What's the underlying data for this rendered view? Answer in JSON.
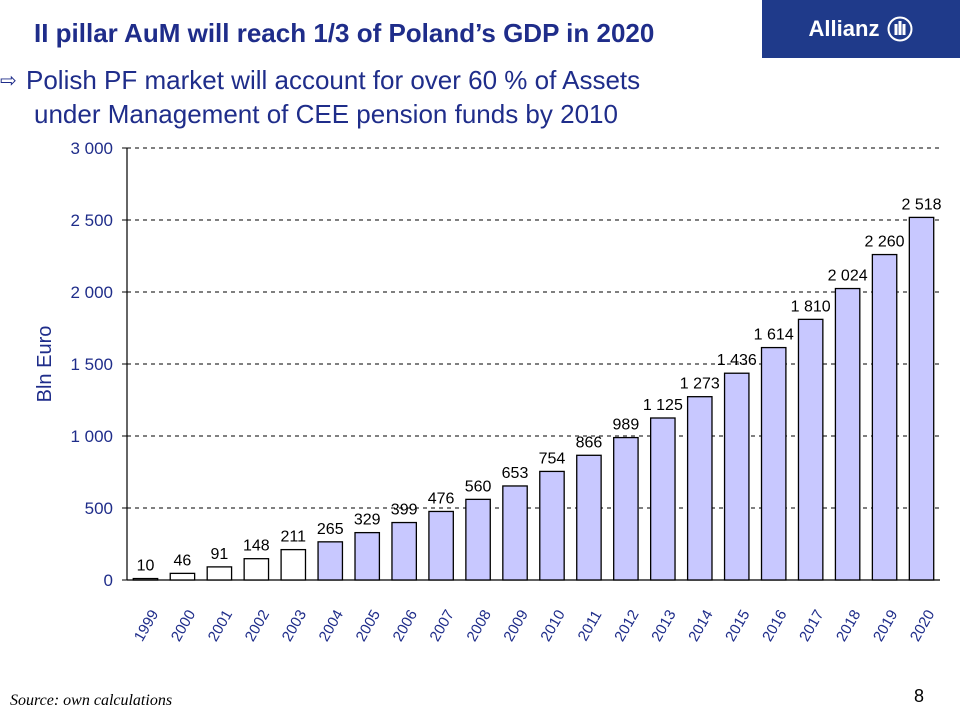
{
  "logo": {
    "text": "Allianz"
  },
  "title": "II pillar AuM will reach 1/3 of Poland’s GDP in 2020",
  "bullet": {
    "line1": "Polish PF market will account  for over 60 % of Assets",
    "line2": "under Management of CEE pension funds by 2010"
  },
  "colors": {
    "title": "#1f2d8a",
    "bar_fill_projected": "#c8c8ff",
    "bar_fill_actual": "#ffffff",
    "axis_text": "#1f2d8a"
  },
  "chart_data": {
    "type": "bar",
    "ylabel": "Bln Euro",
    "ylim": [
      0,
      3000
    ],
    "yticks": [
      0,
      500,
      1000,
      1500,
      2000,
      2500,
      3000
    ],
    "ytick_labels": [
      "0",
      "500",
      "1 000",
      "1 500",
      "2 000",
      "2 500",
      "3 000"
    ],
    "grid": "horizontal dashed",
    "categories": [
      "1999",
      "2000",
      "2001",
      "2002",
      "2003",
      "2004",
      "2005",
      "2006",
      "2007",
      "2008",
      "2009",
      "2010",
      "2011",
      "2012",
      "2013",
      "2014",
      "2015",
      "2016",
      "2017",
      "2018",
      "2019",
      "2020"
    ],
    "values": [
      10,
      46,
      91,
      148,
      211,
      265,
      329,
      399,
      476,
      560,
      653,
      754,
      866,
      989,
      1125,
      1273,
      1436,
      1614,
      1810,
      2024,
      2260,
      2518
    ],
    "value_labels": [
      "10",
      "46",
      "91",
      "148",
      "211",
      "265",
      "329",
      "399",
      "476",
      "560",
      "653",
      "754",
      "866",
      "989",
      "1 125",
      "1 273",
      "1 436",
      "1 614",
      "1 810",
      "2 024",
      "2 260",
      "2 518"
    ],
    "filled": [
      false,
      false,
      false,
      false,
      false,
      true,
      true,
      true,
      true,
      true,
      true,
      true,
      true,
      true,
      true,
      true,
      true,
      true,
      true,
      true,
      true,
      true
    ]
  },
  "footer": {
    "source": "Source:  own calculations",
    "page": "8"
  }
}
